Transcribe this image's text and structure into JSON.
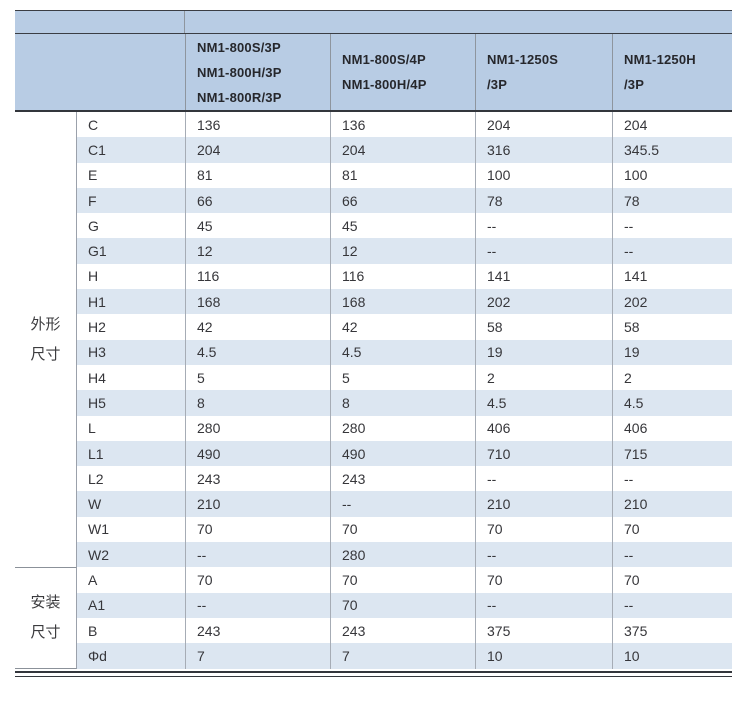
{
  "chart_data": {
    "type": "table",
    "title": "",
    "empty_value_marker": "--",
    "column_headers": [
      [
        "NM1-800S/3P",
        "NM1-800H/3P",
        "NM1-800R/3P"
      ],
      [
        "NM1-800S/4P",
        "NM1-800H/4P"
      ],
      [
        "NM1-1250S",
        "/3P"
      ],
      [
        "NM1-1250H",
        "/3P"
      ]
    ],
    "row_groups": [
      {
        "group_label": "外形尺寸",
        "group_label_lines": [
          "外形",
          "尺寸"
        ],
        "rows": [
          {
            "param": "C",
            "values": [
              "136",
              "136",
              "204",
              "204"
            ]
          },
          {
            "param": "C1",
            "values": [
              "204",
              "204",
              "316",
              "345.5"
            ]
          },
          {
            "param": "E",
            "values": [
              "81",
              "81",
              "100",
              "100"
            ]
          },
          {
            "param": "F",
            "values": [
              "66",
              "66",
              "78",
              "78"
            ]
          },
          {
            "param": "G",
            "values": [
              "45",
              "45",
              "--",
              "--"
            ]
          },
          {
            "param": "G1",
            "values": [
              "12",
              "12",
              "--",
              "--"
            ]
          },
          {
            "param": "H",
            "values": [
              "116",
              "116",
              "141",
              "141"
            ]
          },
          {
            "param": "H1",
            "values": [
              "168",
              "168",
              "202",
              "202"
            ]
          },
          {
            "param": "H2",
            "values": [
              "42",
              "42",
              "58",
              "58"
            ]
          },
          {
            "param": "H3",
            "values": [
              "4.5",
              "4.5",
              "19",
              "19"
            ]
          },
          {
            "param": "H4",
            "values": [
              "5",
              "5",
              "2",
              "2"
            ]
          },
          {
            "param": "H5",
            "values": [
              "8",
              "8",
              "4.5",
              "4.5"
            ]
          },
          {
            "param": "L",
            "values": [
              "280",
              "280",
              "406",
              "406"
            ]
          },
          {
            "param": "L1",
            "values": [
              "490",
              "490",
              "710",
              "715"
            ]
          },
          {
            "param": "L2",
            "values": [
              "243",
              "243",
              "--",
              "--"
            ]
          },
          {
            "param": "W",
            "values": [
              "210",
              "--",
              "210",
              "210"
            ]
          },
          {
            "param": "W1",
            "values": [
              "70",
              "70",
              "70",
              "70"
            ]
          },
          {
            "param": "W2",
            "values": [
              "--",
              "280",
              "--",
              "--"
            ]
          }
        ]
      },
      {
        "group_label": "安装尺寸",
        "group_label_lines": [
          "安装",
          "尺寸"
        ],
        "rows": [
          {
            "param": "A",
            "values": [
              "70",
              "70",
              "70",
              "70"
            ]
          },
          {
            "param": "A1",
            "values": [
              "--",
              "70",
              "--",
              "--"
            ]
          },
          {
            "param": "B",
            "values": [
              "243",
              "243",
              "375",
              "375"
            ]
          },
          {
            "param": "Φd",
            "values": [
              "7",
              "7",
              "10",
              "10"
            ]
          }
        ]
      }
    ]
  },
  "colors": {
    "header_background": "#b8cce4",
    "stripe_background": "#dce6f1",
    "row_background": "#ffffff",
    "dark_rule": "#33363c",
    "grid_line": "#9ba1ab",
    "text": "#36363a"
  }
}
